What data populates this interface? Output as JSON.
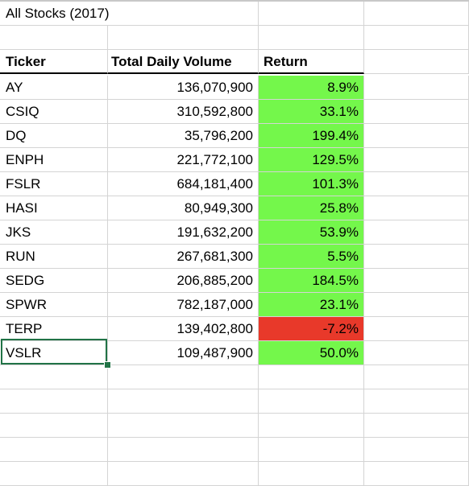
{
  "title": "All Stocks (2017)",
  "headers": {
    "ticker": "Ticker",
    "volume": "Total Daily Volume",
    "return": "Return"
  },
  "colors": {
    "positive": "#74f74b",
    "negative": "#e8392a",
    "selection": "#217346",
    "gridline": "#d4d4d4"
  },
  "rows": [
    {
      "ticker": "AY",
      "volume": "136,070,900",
      "return": "8.9%",
      "status": "positive"
    },
    {
      "ticker": "CSIQ",
      "volume": "310,592,800",
      "return": "33.1%",
      "status": "positive"
    },
    {
      "ticker": "DQ",
      "volume": "35,796,200",
      "return": "199.4%",
      "status": "positive"
    },
    {
      "ticker": "ENPH",
      "volume": "221,772,100",
      "return": "129.5%",
      "status": "positive"
    },
    {
      "ticker": "FSLR",
      "volume": "684,181,400",
      "return": "101.3%",
      "status": "positive"
    },
    {
      "ticker": "HASI",
      "volume": "80,949,300",
      "return": "25.8%",
      "status": "positive"
    },
    {
      "ticker": "JKS",
      "volume": "191,632,200",
      "return": "53.9%",
      "status": "positive"
    },
    {
      "ticker": "RUN",
      "volume": "267,681,300",
      "return": "5.5%",
      "status": "positive"
    },
    {
      "ticker": "SEDG",
      "volume": "206,885,200",
      "return": "184.5%",
      "status": "positive"
    },
    {
      "ticker": "SPWR",
      "volume": "782,187,000",
      "return": "23.1%",
      "status": "positive"
    },
    {
      "ticker": "TERP",
      "volume": "139,402,800",
      "return": "-7.2%",
      "status": "negative"
    },
    {
      "ticker": "VSLR",
      "volume": "109,487,900",
      "return": "50.0%",
      "status": "positive"
    }
  ],
  "selected_cell": "VSLR"
}
